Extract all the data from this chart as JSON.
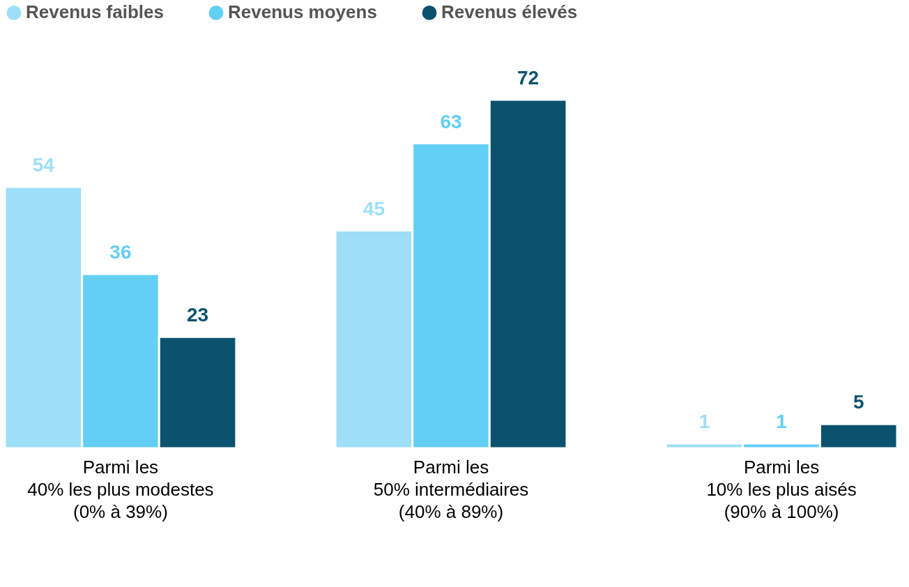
{
  "chart_data": {
    "type": "bar",
    "categories": [
      "Parmi les\n40% les plus modestes\n(0% à 39%)",
      "Parmi les\n50% intermédiaires\n(40% à 89%)",
      "Parmi les\n10% les plus aisés\n(90% à 100%)"
    ],
    "series": [
      {
        "name": "Revenus faibles",
        "color": "#9ddff8",
        "values": [
          54,
          45,
          1
        ]
      },
      {
        "name": "Revenus moyens",
        "color": "#63cff4",
        "values": [
          36,
          63,
          1
        ]
      },
      {
        "name": "Revenus élevés",
        "color": "#0b526e",
        "values": [
          23,
          72,
          5
        ]
      }
    ],
    "data_labels": true,
    "legend": "top",
    "grid": false
  }
}
